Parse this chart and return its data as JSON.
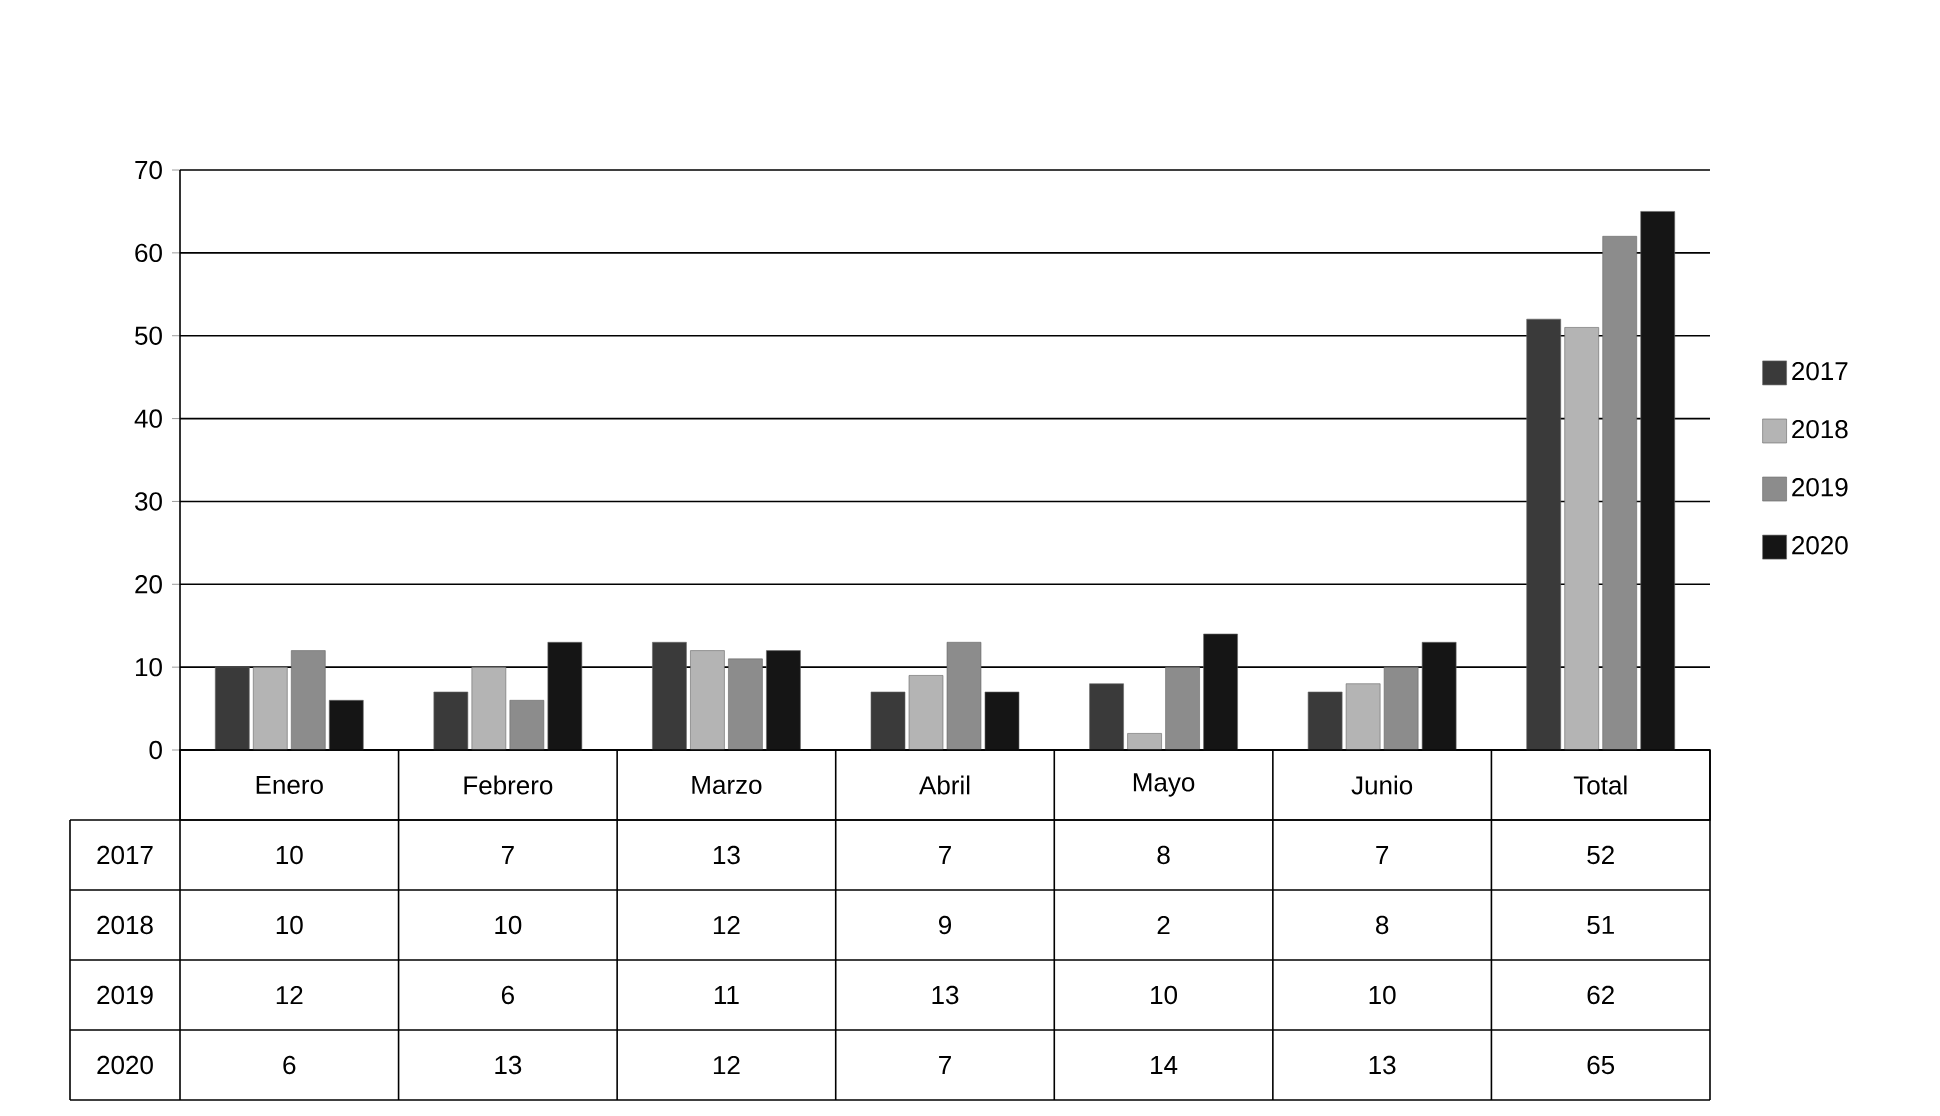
{
  "chart_data": {
    "type": "bar",
    "categories": [
      "Enero",
      "Febrero",
      "Marzo",
      "Abril",
      "Mayo",
      "Junio",
      "Total"
    ],
    "series": [
      {
        "name": "2017",
        "color": "#3a3a3a",
        "values": [
          10,
          7,
          13,
          7,
          8,
          7,
          52
        ]
      },
      {
        "name": "2018",
        "color": "#b4b4b4",
        "values": [
          10,
          10,
          12,
          9,
          2,
          8,
          51
        ]
      },
      {
        "name": "2019",
        "color": "#8c8c8c",
        "values": [
          12,
          6,
          11,
          13,
          10,
          10,
          62
        ]
      },
      {
        "name": "2020",
        "color": "#151515",
        "values": [
          6,
          13,
          12,
          7,
          14,
          13,
          65
        ]
      }
    ],
    "ylim": [
      0,
      70
    ],
    "yticks": [
      0,
      10,
      20,
      30,
      40,
      50,
      60,
      70
    ],
    "grid": "y",
    "legend": "right",
    "data_labels": true
  }
}
